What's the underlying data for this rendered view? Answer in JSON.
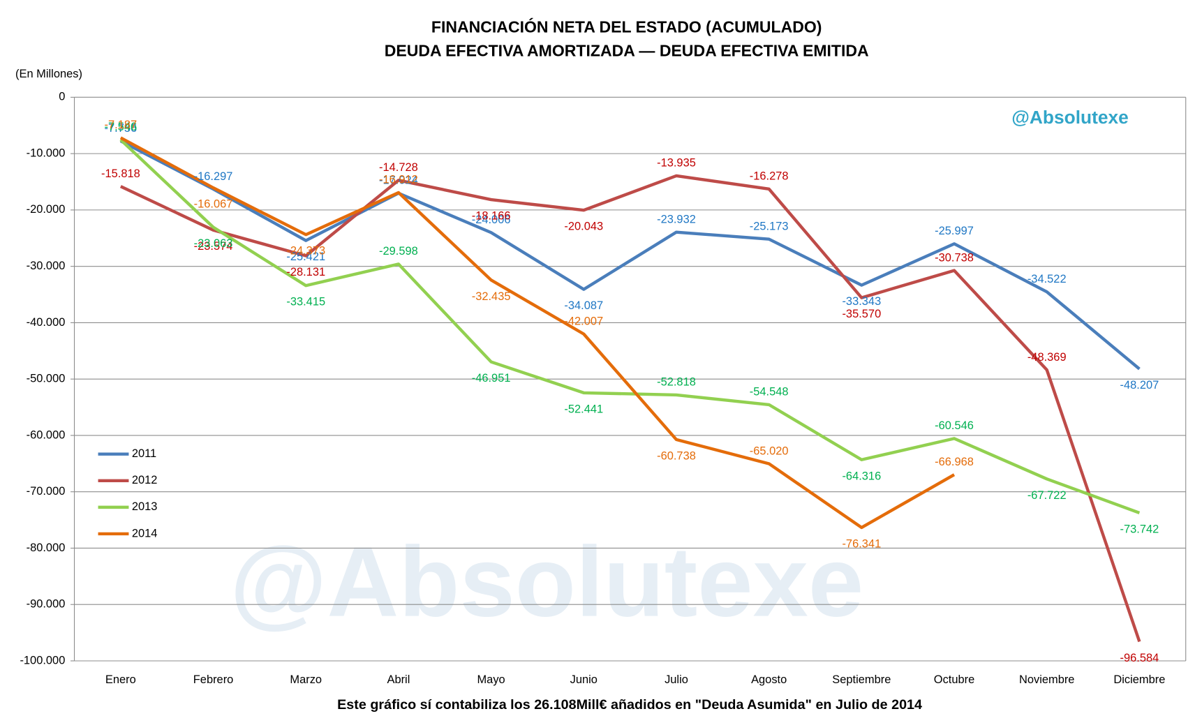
{
  "chart_data": {
    "type": "line",
    "title": "FINANCIACIÓN NETA DEL ESTADO (ACUMULADO)",
    "subtitle": "DEUDA EFECTIVA AMORTIZADA — DEUDA EFECTIVA EMITIDA",
    "y_label": "(En Millones)",
    "footnote": "Este gráfico sí contabiliza los 26.108Mill€ añadidos en \"Deuda Asumida\"  en Julio de 2014",
    "watermark": "@Absolutexe",
    "categories": [
      "Enero",
      "Febrero",
      "Marzo",
      "Abril",
      "Mayo",
      "Junio",
      "Julio",
      "Agosto",
      "Septiembre",
      "Octubre",
      "Noviembre",
      "Diciembre"
    ],
    "series": [
      {
        "name": "2011",
        "color": "#4a7ebb",
        "label_color": "#1f77c4",
        "values": [
          -7756,
          -16297,
          -25421,
          -17024,
          -24006,
          -34087,
          -23932,
          -25173,
          -33343,
          -25997,
          -34522,
          -48207
        ],
        "value_labels": [
          "-7.756",
          "-16.297",
          "-25.421",
          "-17.024",
          "-24.006",
          "-34.087",
          "-23.932",
          "-25.173",
          "-33.343",
          "-25.997",
          "-34.522",
          "-48.207"
        ]
      },
      {
        "name": "2012",
        "color": "#be4b48",
        "label_color": "#c00000",
        "values": [
          -15818,
          -23574,
          -28131,
          -14728,
          -18166,
          -20043,
          -13935,
          -16278,
          -35570,
          -30738,
          -48369,
          -96584
        ],
        "value_labels": [
          "-15.818",
          "-23.574",
          "-28.131",
          "-14.728",
          "-18.166",
          "-20.043",
          "-13.935",
          "-16.278",
          "-35.570",
          "-30.738",
          "-48.369",
          "-96.584"
        ]
      },
      {
        "name": "2013",
        "color": "#92d050",
        "label_color": "#00b050",
        "values": [
          -7546,
          -23063,
          -33415,
          -29598,
          -46951,
          -52441,
          -52818,
          -54548,
          -64316,
          -60546,
          -67722,
          -73742
        ],
        "value_labels": [
          "-7.546",
          "-23.063",
          "-33.415",
          "-29.598",
          "-46.951",
          "-52.441",
          "-52.818",
          "-54.548",
          "-64.316",
          "-60.546",
          "-67.722",
          "-73.742"
        ]
      },
      {
        "name": "2014",
        "color": "#e46c0a",
        "label_color": "#e46c0a",
        "values": [
          -7187,
          -16067,
          -24373,
          -16912,
          -32435,
          -42007,
          -60738,
          -65020,
          -76341,
          -66968,
          null,
          null
        ],
        "value_labels": [
          "-7.187",
          "-16.067",
          "-24.373",
          "-16.912",
          "-32.435",
          "-42.007",
          "-60.738",
          "-65.020",
          "-76.341",
          "-66.968",
          null,
          null
        ]
      }
    ],
    "ylim": [
      -100000,
      0
    ],
    "yticks": [
      {
        "value": -100000,
        "label": "-100.000"
      },
      {
        "value": -90000,
        "label": "-90.000"
      },
      {
        "value": -80000,
        "label": "-80.000"
      },
      {
        "value": -70000,
        "label": "-70.000"
      },
      {
        "value": -60000,
        "label": "-60.000"
      },
      {
        "value": -50000,
        "label": "-50.000"
      },
      {
        "value": -40000,
        "label": "-40.000"
      },
      {
        "value": -30000,
        "label": "-30.000"
      },
      {
        "value": -20000,
        "label": "-20.000"
      },
      {
        "value": -10000,
        "label": "-10.000"
      },
      0
    ],
    "grid": true,
    "legend": "left"
  }
}
